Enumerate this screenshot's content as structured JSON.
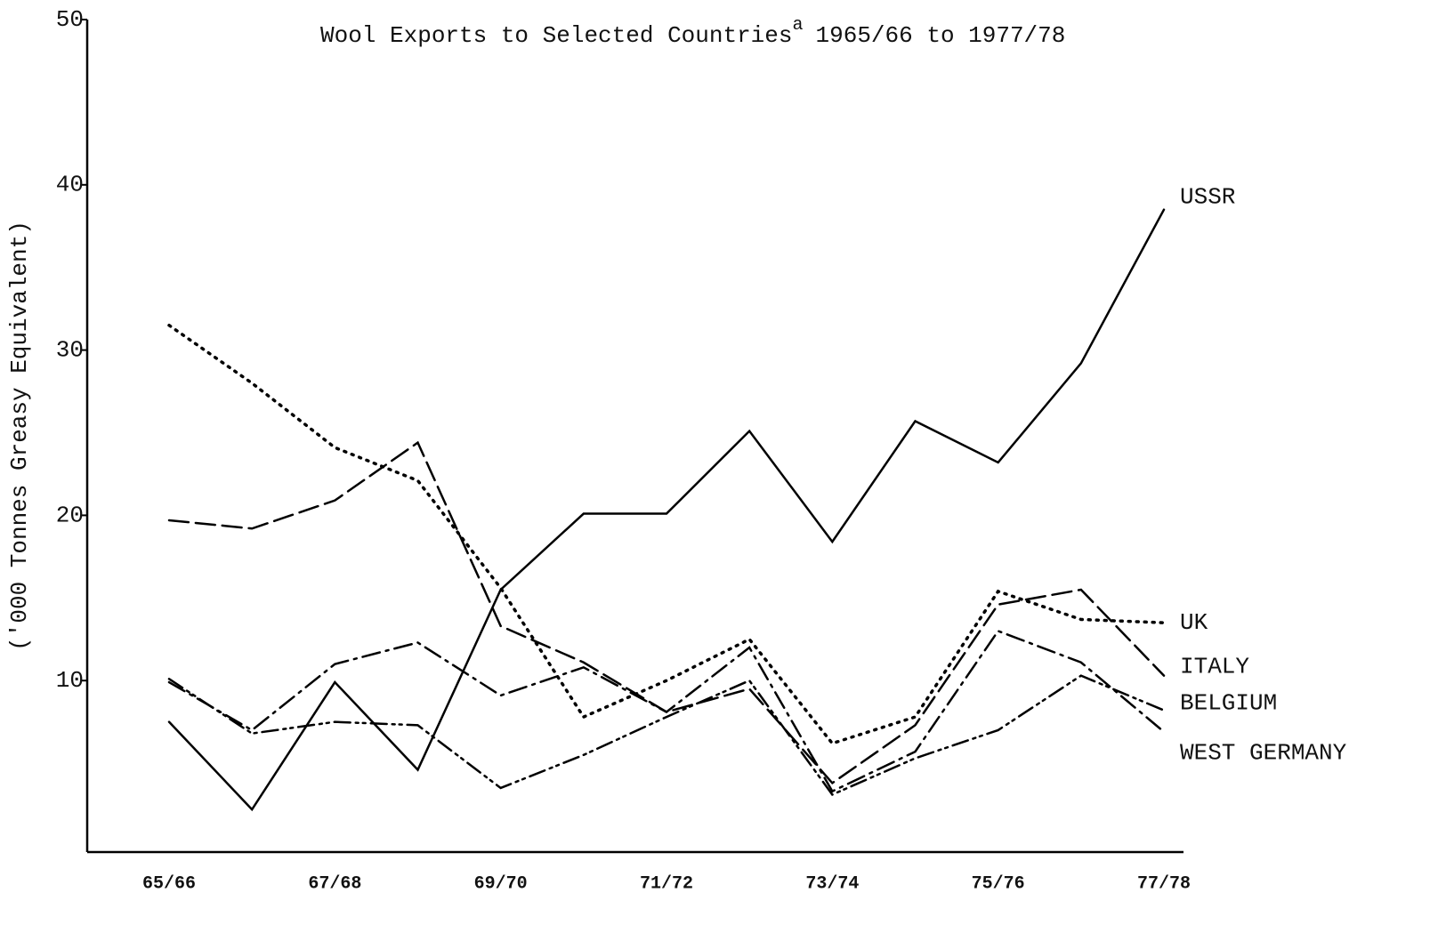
{
  "chart_data": {
    "type": "line",
    "title": "Wool Exports to Selected Countries",
    "title_superscript": "a",
    "title_period": "1965/66 to 1977/78",
    "y_label": "('000 Tonnes Greasy Equivalent)",
    "categories": [
      "65/66",
      null,
      "67/68",
      null,
      "69/70",
      null,
      "71/72",
      null,
      "73/74",
      null,
      "75/76",
      null,
      "77/78"
    ],
    "ylim": [
      0,
      50
    ],
    "yticks": [
      10,
      20,
      30,
      40,
      50
    ],
    "grid": false,
    "series": [
      {
        "name": "USSR",
        "color": "#000000",
        "line_style": "solid",
        "values": [
          7.5,
          2.2,
          9.9,
          4.6,
          15.5,
          20.1,
          20.1,
          25.1,
          18.4,
          25.7,
          23.2,
          29.2,
          38.5
        ]
      },
      {
        "name": "UK",
        "color": "#000000",
        "line_style": "dotted",
        "values": [
          31.5,
          28,
          24.1,
          22.1,
          15.6,
          7.8,
          10,
          12.5,
          6.2,
          7.8,
          15.4,
          13.7,
          13.5
        ]
      },
      {
        "name": "ITALY",
        "color": "#000000",
        "line_style": "dashed",
        "values": [
          19.7,
          19.2,
          20.9,
          24.4,
          13.3,
          11.1,
          8.1,
          9.5,
          3.8,
          7.3,
          14.6,
          15.5,
          10.3
        ]
      },
      {
        "name": "BELGIUM",
        "color": "#000000",
        "line_style": "dash-dot-dot",
        "values": [
          10.1,
          6.8,
          7.5,
          7.3,
          3.5,
          5.5,
          7.8,
          10,
          3.1,
          5.3,
          7,
          10.3,
          8.2
        ]
      },
      {
        "name": "WEST GERMANY",
        "color": "#000000",
        "line_style": "dash-dot",
        "values": [
          9.9,
          7,
          11,
          12.3,
          9.1,
          10.8,
          8.1,
          12,
          3.3,
          5.7,
          13,
          11.1,
          6.9
        ]
      }
    ]
  }
}
